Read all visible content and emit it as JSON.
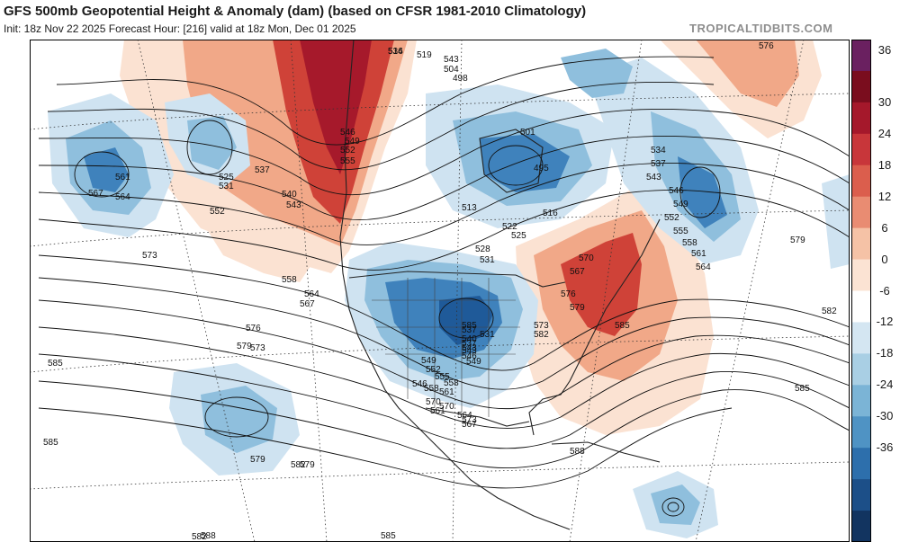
{
  "header": {
    "title": "GFS 500mb Geopotential Height & Anomaly (dam) (based on CFSR 1981-2010 Climatology)",
    "subtitle": "Init: 18z Nov 22 2025   Forecast Hour: [216]   valid at 18z Mon, Dec 01 2025",
    "brand": "TROPICALTIDBITS.COM"
  },
  "colorbar": {
    "ticks": [
      "36",
      "30",
      "24",
      "18",
      "12",
      "6",
      "0",
      "-6",
      "-12",
      "-18",
      "-24",
      "-30",
      "-36"
    ],
    "colors": [
      "#6a2060",
      "#7a0d1e",
      "#a5182b",
      "#c8363a",
      "#db5e4d",
      "#e98c72",
      "#f5c2a6",
      "#fbe3d3",
      "#ffffff",
      "#d4e6f2",
      "#a9cfe4",
      "#7bb4d6",
      "#4f93c4",
      "#2d6fac",
      "#1c4f88",
      "#123460"
    ]
  },
  "map": {
    "colors": {
      "land": "#ffffff",
      "red_light": "#fbe2d2",
      "red_mid": "#f1a888",
      "red_dark": "#cf4238",
      "red_deep": "#a6192b",
      "blue_light": "#cfe3f1",
      "blue_mid": "#8fbfdd",
      "blue_dark": "#3f82bc",
      "blue_deep": "#1f5a99"
    },
    "contour_labels": [
      "516",
      "519",
      "543",
      "504",
      "498",
      "501",
      "495",
      "513",
      "516",
      "522",
      "525",
      "528",
      "531",
      "534",
      "537",
      "543",
      "546",
      "549",
      "552",
      "555",
      "558",
      "561",
      "564",
      "567",
      "570",
      "573",
      "576",
      "579",
      "582",
      "585",
      "588",
      "525",
      "531",
      "537",
      "540",
      "543",
      "546",
      "549",
      "552",
      "555",
      "552",
      "558",
      "564",
      "567",
      "561",
      "564",
      "567",
      "573",
      "576",
      "579",
      "579",
      "582",
      "585",
      "585",
      "582",
      "585",
      "579",
      "576",
      "573",
      "570",
      "561",
      "558",
      "546",
      "549",
      "543",
      "540",
      "537",
      "531",
      "585",
      "588",
      "585",
      "582",
      "579",
      "573",
      "570",
      "564",
      "567",
      "561",
      "558",
      "555",
      "552",
      "549",
      "546",
      "543",
      "537",
      "534"
    ]
  }
}
